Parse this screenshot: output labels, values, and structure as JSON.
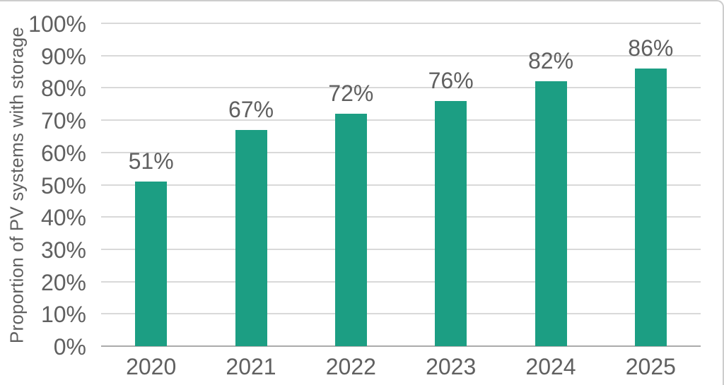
{
  "chart_data": {
    "type": "bar",
    "title": "",
    "ylabel": "Proportion of PV systems with storage",
    "xlabel": "",
    "categories": [
      "2020",
      "2021",
      "2022",
      "2023",
      "2024",
      "2025"
    ],
    "values": [
      51,
      67,
      72,
      76,
      82,
      86
    ],
    "value_labels": [
      "51%",
      "67%",
      "72%",
      "76%",
      "82%",
      "86%"
    ],
    "ylim": [
      0,
      100
    ],
    "ytick_step": 10,
    "ytick_labels": [
      "0%",
      "10%",
      "20%",
      "30%",
      "40%",
      "50%",
      "60%",
      "70%",
      "80%",
      "90%",
      "100%"
    ],
    "grid": "horizontal",
    "legend": "none",
    "colors": {
      "bar": "#1c9e83",
      "grid": "#d9d9d9",
      "axis": "#ababab",
      "text": "#606060",
      "frame_border": "#cdcdcd",
      "background": "#ffffff"
    }
  }
}
